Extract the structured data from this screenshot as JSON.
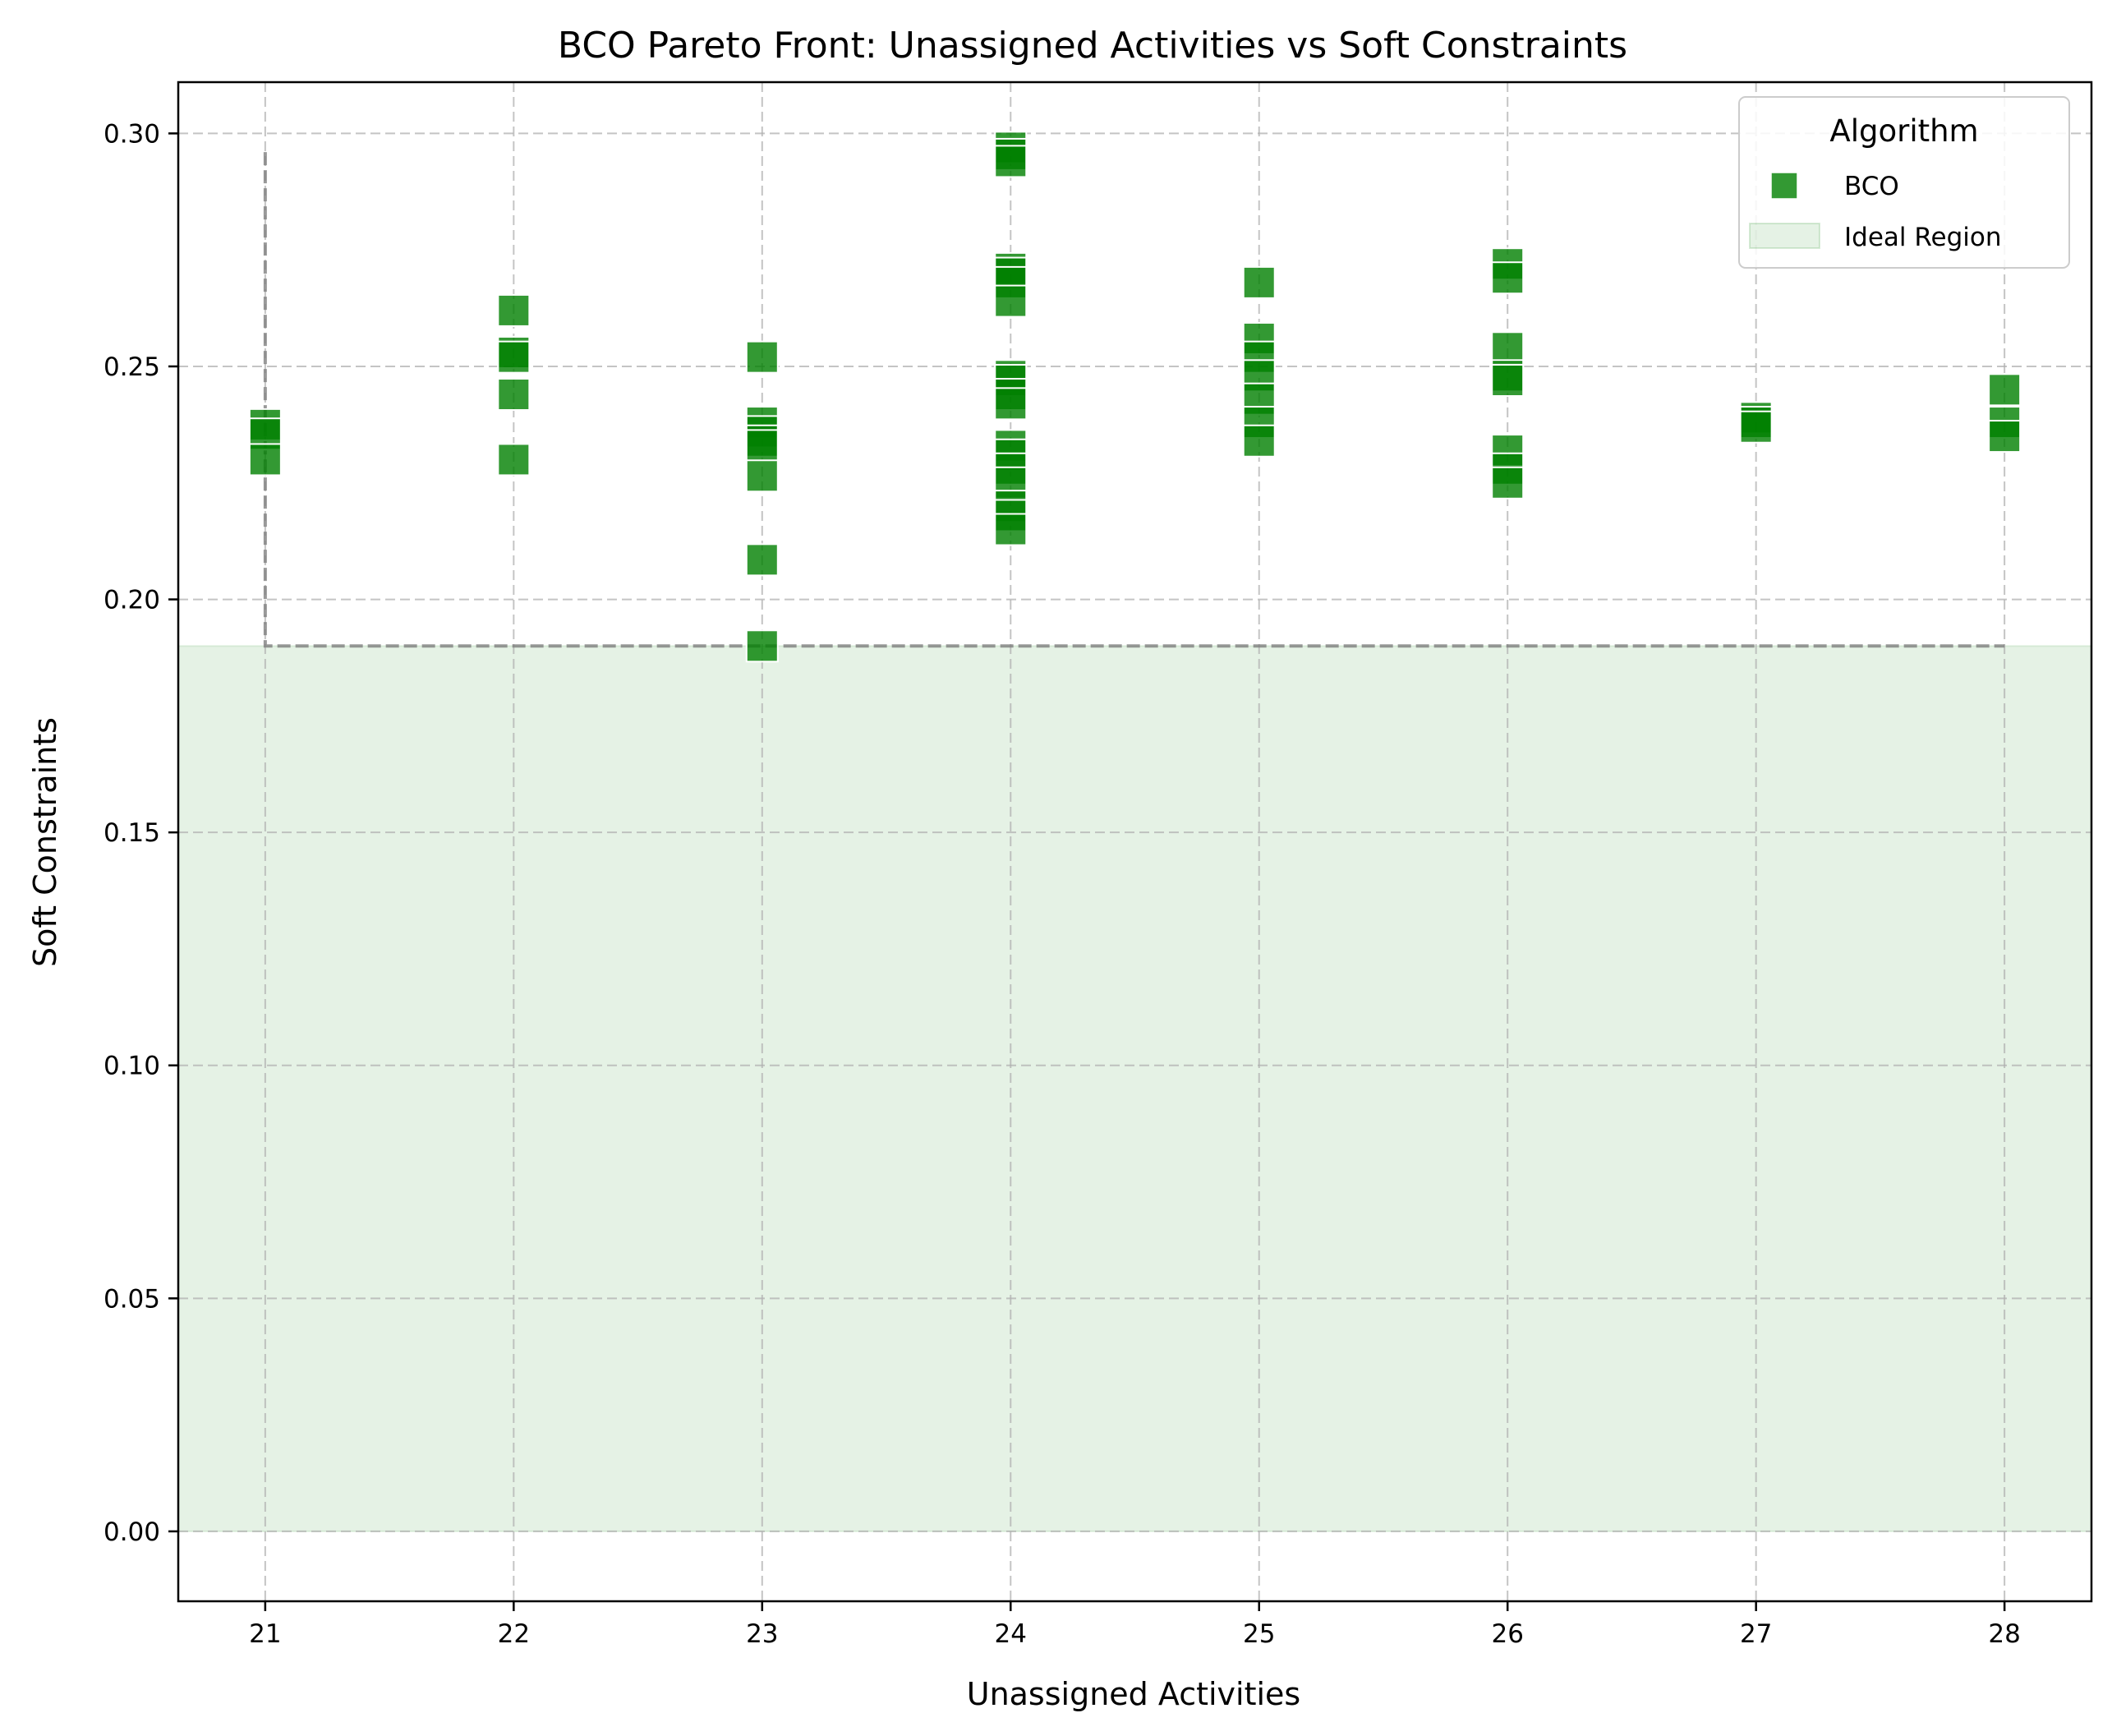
{
  "chart_data": {
    "type": "scatter",
    "title": "BCO Pareto Front: Unassigned Activities vs Soft Constraints",
    "xlabel": "Unassigned Activities",
    "ylabel": "Soft Constraints",
    "xlim": [
      20.65,
      28.35
    ],
    "ylim": [
      -0.015,
      0.311
    ],
    "xticks": [
      21,
      22,
      23,
      24,
      25,
      26,
      27,
      28
    ],
    "xtick_labels": [
      "21",
      "22",
      "23",
      "24",
      "25",
      "26",
      "27",
      "28"
    ],
    "yticks": [
      0.0,
      0.05,
      0.1,
      0.15,
      0.2,
      0.25,
      0.3
    ],
    "ytick_labels": [
      "0.00",
      "0.05",
      "0.10",
      "0.15",
      "0.20",
      "0.25",
      "0.30"
    ],
    "grid": true,
    "legend": {
      "title": "Algorithm",
      "placement": "top-right",
      "entries": [
        "BCO",
        "Ideal Region"
      ]
    },
    "series": [
      {
        "name": "BCO",
        "marker": "square",
        "color": "#008000",
        "points": [
          [
            21,
            0.2375
          ],
          [
            21,
            0.2355
          ],
          [
            21,
            0.23
          ],
          [
            22,
            0.262
          ],
          [
            22,
            0.253
          ],
          [
            22,
            0.252
          ],
          [
            22,
            0.244
          ],
          [
            22,
            0.23
          ],
          [
            23,
            0.252
          ],
          [
            23,
            0.238
          ],
          [
            23,
            0.236
          ],
          [
            23,
            0.234
          ],
          [
            23,
            0.233
          ],
          [
            23,
            0.2265
          ],
          [
            23,
            0.2085
          ],
          [
            23,
            0.19
          ],
          [
            24,
            0.297
          ],
          [
            24,
            0.2955
          ],
          [
            24,
            0.294
          ],
          [
            24,
            0.271
          ],
          [
            24,
            0.27
          ],
          [
            24,
            0.268
          ],
          [
            24,
            0.264
          ],
          [
            24,
            0.248
          ],
          [
            24,
            0.247
          ],
          [
            24,
            0.244
          ],
          [
            24,
            0.242
          ],
          [
            24,
            0.233
          ],
          [
            24,
            0.231
          ],
          [
            24,
            0.228
          ],
          [
            24,
            0.225
          ],
          [
            24,
            0.22
          ],
          [
            24,
            0.218
          ],
          [
            24,
            0.215
          ],
          [
            25,
            0.268
          ],
          [
            25,
            0.256
          ],
          [
            25,
            0.252
          ],
          [
            25,
            0.248
          ],
          [
            25,
            0.243
          ],
          [
            25,
            0.238
          ],
          [
            25,
            0.234
          ],
          [
            26,
            0.272
          ],
          [
            26,
            0.269
          ],
          [
            26,
            0.254
          ],
          [
            26,
            0.248
          ],
          [
            26,
            0.247
          ],
          [
            26,
            0.232
          ],
          [
            26,
            0.228
          ],
          [
            26,
            0.225
          ],
          [
            27,
            0.239
          ],
          [
            27,
            0.238
          ],
          [
            27,
            0.237
          ],
          [
            28,
            0.245
          ],
          [
            28,
            0.238
          ],
          [
            28,
            0.235
          ]
        ]
      }
    ],
    "ideal_region": {
      "name": "Ideal Region",
      "x_range": [
        20.65,
        28.35
      ],
      "y_range": [
        0.0,
        0.19
      ],
      "color": "#008000"
    },
    "pareto_front": {
      "style": "dashed",
      "color": "#808080",
      "points": [
        [
          21,
          0.296
        ],
        [
          21,
          0.19
        ],
        [
          28,
          0.19
        ]
      ]
    }
  }
}
